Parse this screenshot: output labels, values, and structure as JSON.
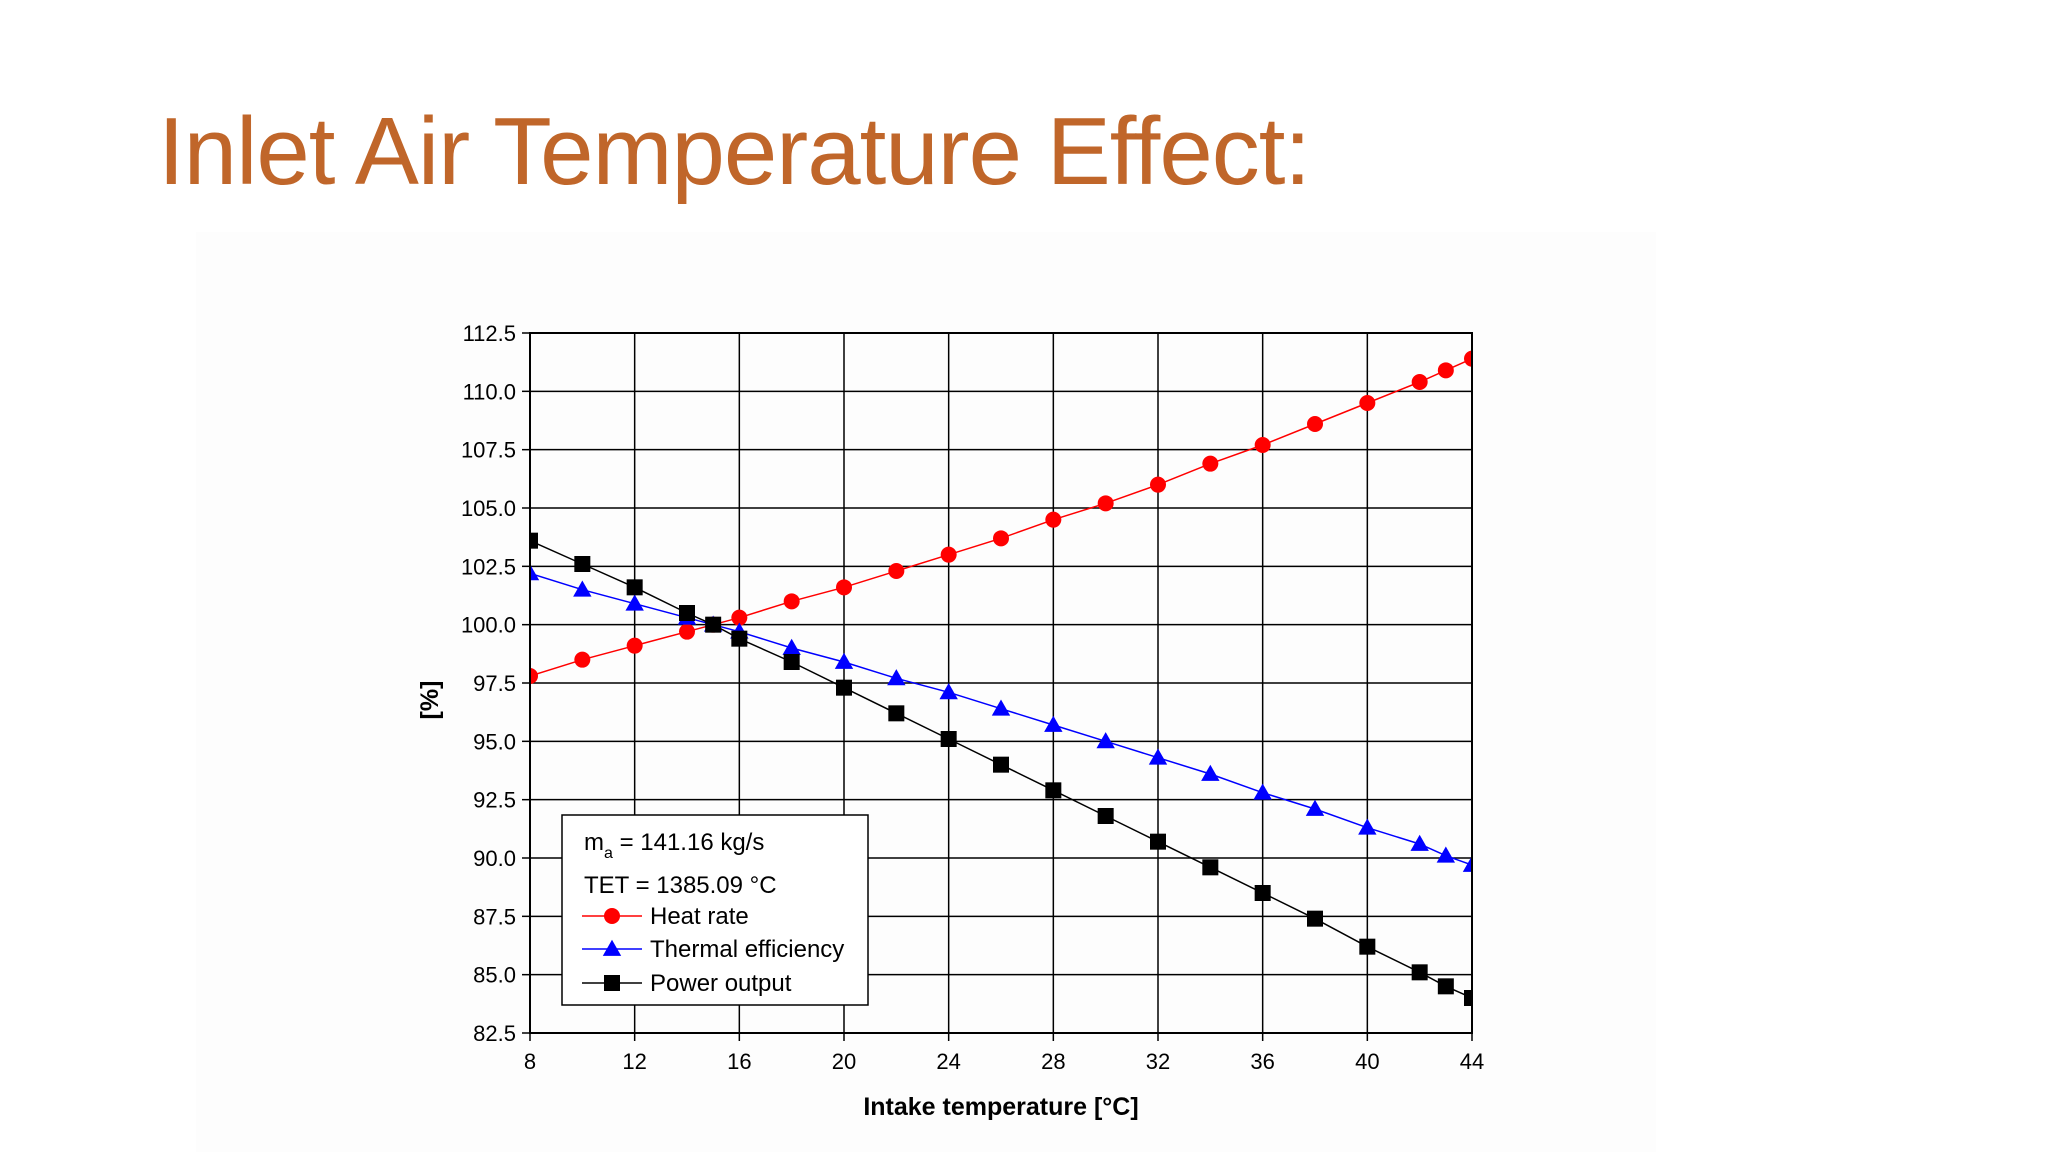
{
  "slide": {
    "title": "Inlet Air Temperature Effect:",
    "title_color": "#C0662A"
  },
  "chart_data": {
    "type": "line",
    "xlabel": "Intake temperature [°C]",
    "ylabel": "[%]",
    "xlim": [
      8,
      44
    ],
    "ylim": [
      82.5,
      112.5
    ],
    "x_ticks": [
      8,
      12,
      16,
      20,
      24,
      28,
      32,
      36,
      40,
      44
    ],
    "x_tick_labels": [
      "8",
      "12",
      "16",
      "20",
      "24",
      "28",
      "32",
      "36",
      "40",
      "44"
    ],
    "y_ticks": [
      82.5,
      85,
      87.5,
      90,
      92.5,
      95,
      97.5,
      100,
      102.5,
      105,
      107.5,
      110,
      112.5
    ],
    "y_tick_labels": [
      "82.5",
      "85.0",
      "87.5",
      "90.0",
      "92.5",
      "95.0",
      "97.5",
      "100.0",
      "102.5",
      "105.0",
      "107.5",
      "110.0",
      "112.5"
    ],
    "grid": true,
    "legend_position": "bottom-left",
    "annotations": {
      "mass_flow_symbol": "m",
      "mass_flow_subscript": "a",
      "mass_flow_value": " = 141.16 kg/s",
      "tet": "TET = 1385.09 °C"
    },
    "series": [
      {
        "name": "Heat rate",
        "color": "#FF0000",
        "marker": "circle",
        "x": [
          8,
          10,
          12,
          14,
          15,
          16,
          18,
          20,
          22,
          24,
          26,
          28,
          30,
          32,
          34,
          36,
          38,
          40,
          42,
          43,
          44
        ],
        "y": [
          97.8,
          98.5,
          99.1,
          99.7,
          100.0,
          100.3,
          101.0,
          101.6,
          102.3,
          103.0,
          103.7,
          104.5,
          105.2,
          106.0,
          106.9,
          107.7,
          108.6,
          109.5,
          110.4,
          110.9,
          111.4
        ]
      },
      {
        "name": "Thermal efficiency",
        "color": "#0000FF",
        "marker": "triangle",
        "x": [
          8,
          10,
          12,
          14,
          15,
          16,
          18,
          20,
          22,
          24,
          26,
          28,
          30,
          32,
          34,
          36,
          38,
          40,
          42,
          43,
          44
        ],
        "y": [
          102.2,
          101.5,
          100.9,
          100.3,
          100.0,
          99.7,
          99.0,
          98.4,
          97.7,
          97.1,
          96.4,
          95.7,
          95.0,
          94.3,
          93.6,
          92.8,
          92.1,
          91.3,
          90.6,
          90.1,
          89.7
        ]
      },
      {
        "name": "Power output",
        "color": "#000000",
        "marker": "square",
        "x": [
          8,
          10,
          12,
          14,
          15,
          16,
          18,
          20,
          22,
          24,
          26,
          28,
          30,
          32,
          34,
          36,
          38,
          40,
          42,
          43,
          44
        ],
        "y": [
          103.6,
          102.6,
          101.6,
          100.5,
          100.0,
          99.4,
          98.4,
          97.3,
          96.2,
          95.1,
          94.0,
          92.9,
          91.8,
          90.7,
          89.6,
          88.5,
          87.4,
          86.2,
          85.1,
          84.5,
          84.0
        ]
      }
    ]
  }
}
